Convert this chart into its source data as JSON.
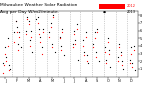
{
  "title1": "Milwaukee Weather Solar Radiation",
  "title2": "Avg per Day W/m2/minute",
  "title_fontsize": 3.2,
  "background_color": "#ffffff",
  "grid_color": "#aaaaaa",
  "ylim": [
    0,
    8.5
  ],
  "xlim": [
    0,
    53
  ],
  "legend_label1": "2012",
  "legend_label2": "2013",
  "legend_color1": "#ff0000",
  "legend_color2": "#000000",
  "month_ticks": [
    2.0,
    6.5,
    11.0,
    15.5,
    20.0,
    24.5,
    28.5,
    33.0,
    37.5,
    41.5,
    46.0,
    50.5
  ],
  "month_labels": [
    "J",
    "F",
    "M",
    "A",
    "M",
    "J",
    "J",
    "A",
    "S",
    "O",
    "N",
    "D"
  ],
  "vlines": [
    4.5,
    9.0,
    13.5,
    18.0,
    22.5,
    27.0,
    31.0,
    35.5,
    40.0,
    44.5,
    49.0
  ],
  "data_red": [
    [
      1.0,
      0.5
    ],
    [
      1.5,
      1.5
    ],
    [
      2.0,
      3.0
    ],
    [
      2.5,
      2.0
    ],
    [
      3.0,
      4.0
    ],
    [
      3.5,
      0.8
    ],
    [
      5.5,
      4.5
    ],
    [
      6.0,
      7.2
    ],
    [
      6.5,
      5.8
    ],
    [
      7.0,
      3.5
    ],
    [
      7.5,
      5.2
    ],
    [
      10.0,
      5.5
    ],
    [
      10.5,
      7.5
    ],
    [
      11.0,
      6.8
    ],
    [
      11.5,
      4.0
    ],
    [
      12.0,
      5.2
    ],
    [
      14.5,
      7.0
    ],
    [
      15.0,
      5.5
    ],
    [
      15.5,
      4.5
    ],
    [
      16.0,
      3.0
    ],
    [
      16.5,
      5.8
    ],
    [
      19.0,
      5.2
    ],
    [
      19.5,
      6.5
    ],
    [
      20.0,
      3.8
    ],
    [
      20.5,
      7.8
    ],
    [
      23.0,
      5.0
    ],
    [
      23.5,
      3.5
    ],
    [
      24.0,
      5.8
    ],
    [
      28.0,
      3.8
    ],
    [
      28.5,
      5.5
    ],
    [
      29.0,
      4.2
    ],
    [
      29.5,
      6.2
    ],
    [
      32.0,
      4.0
    ],
    [
      32.5,
      2.8
    ],
    [
      33.0,
      5.2
    ],
    [
      33.5,
      2.0
    ],
    [
      36.0,
      3.8
    ],
    [
      36.5,
      5.0
    ],
    [
      37.0,
      2.5
    ],
    [
      37.5,
      5.8
    ],
    [
      40.5,
      3.2
    ],
    [
      41.0,
      1.8
    ],
    [
      41.5,
      4.5
    ],
    [
      42.0,
      3.0
    ],
    [
      45.5,
      2.0
    ],
    [
      46.0,
      3.8
    ],
    [
      46.5,
      2.8
    ],
    [
      47.0,
      1.5
    ],
    [
      50.0,
      1.8
    ],
    [
      50.5,
      3.0
    ],
    [
      51.0,
      1.2
    ],
    [
      51.5,
      3.5
    ]
  ],
  "data_black": [
    [
      1.0,
      1.8
    ],
    [
      2.0,
      3.8
    ],
    [
      2.5,
      2.5
    ],
    [
      3.0,
      5.0
    ],
    [
      3.5,
      1.5
    ],
    [
      4.0,
      1.0
    ],
    [
      5.5,
      5.8
    ],
    [
      6.0,
      7.3
    ],
    [
      6.5,
      6.5
    ],
    [
      7.0,
      4.2
    ],
    [
      7.5,
      5.8
    ],
    [
      8.0,
      3.8
    ],
    [
      10.0,
      6.0
    ],
    [
      10.5,
      7.8
    ],
    [
      11.0,
      7.2
    ],
    [
      11.5,
      4.8
    ],
    [
      12.0,
      6.0
    ],
    [
      12.5,
      3.2
    ],
    [
      14.0,
      7.5
    ],
    [
      14.5,
      7.8
    ],
    [
      15.0,
      6.2
    ],
    [
      15.5,
      5.2
    ],
    [
      16.0,
      3.8
    ],
    [
      16.5,
      6.2
    ],
    [
      19.0,
      5.8
    ],
    [
      19.5,
      7.0
    ],
    [
      20.0,
      4.2
    ],
    [
      20.5,
      8.0
    ],
    [
      21.0,
      3.2
    ],
    [
      23.0,
      5.2
    ],
    [
      23.5,
      4.0
    ],
    [
      24.0,
      6.2
    ],
    [
      24.5,
      2.8
    ],
    [
      28.0,
      4.2
    ],
    [
      28.5,
      6.0
    ],
    [
      29.0,
      4.8
    ],
    [
      29.5,
      6.8
    ],
    [
      30.0,
      2.2
    ],
    [
      32.0,
      4.8
    ],
    [
      32.5,
      3.2
    ],
    [
      33.0,
      5.8
    ],
    [
      33.5,
      2.8
    ],
    [
      34.0,
      1.8
    ],
    [
      36.0,
      4.2
    ],
    [
      36.5,
      5.8
    ],
    [
      37.0,
      3.2
    ],
    [
      37.5,
      6.2
    ],
    [
      38.0,
      2.0
    ],
    [
      40.5,
      3.8
    ],
    [
      41.0,
      2.2
    ],
    [
      41.5,
      5.0
    ],
    [
      42.0,
      3.5
    ],
    [
      42.5,
      1.2
    ],
    [
      45.5,
      2.5
    ],
    [
      46.0,
      4.2
    ],
    [
      46.5,
      3.2
    ],
    [
      47.0,
      2.0
    ],
    [
      47.5,
      1.0
    ],
    [
      50.0,
      2.2
    ],
    [
      50.5,
      3.8
    ],
    [
      51.0,
      1.8
    ],
    [
      51.5,
      4.0
    ],
    [
      52.0,
      0.8
    ]
  ],
  "ytick_vals": [
    1,
    2,
    3,
    4,
    5,
    6,
    7,
    8
  ]
}
